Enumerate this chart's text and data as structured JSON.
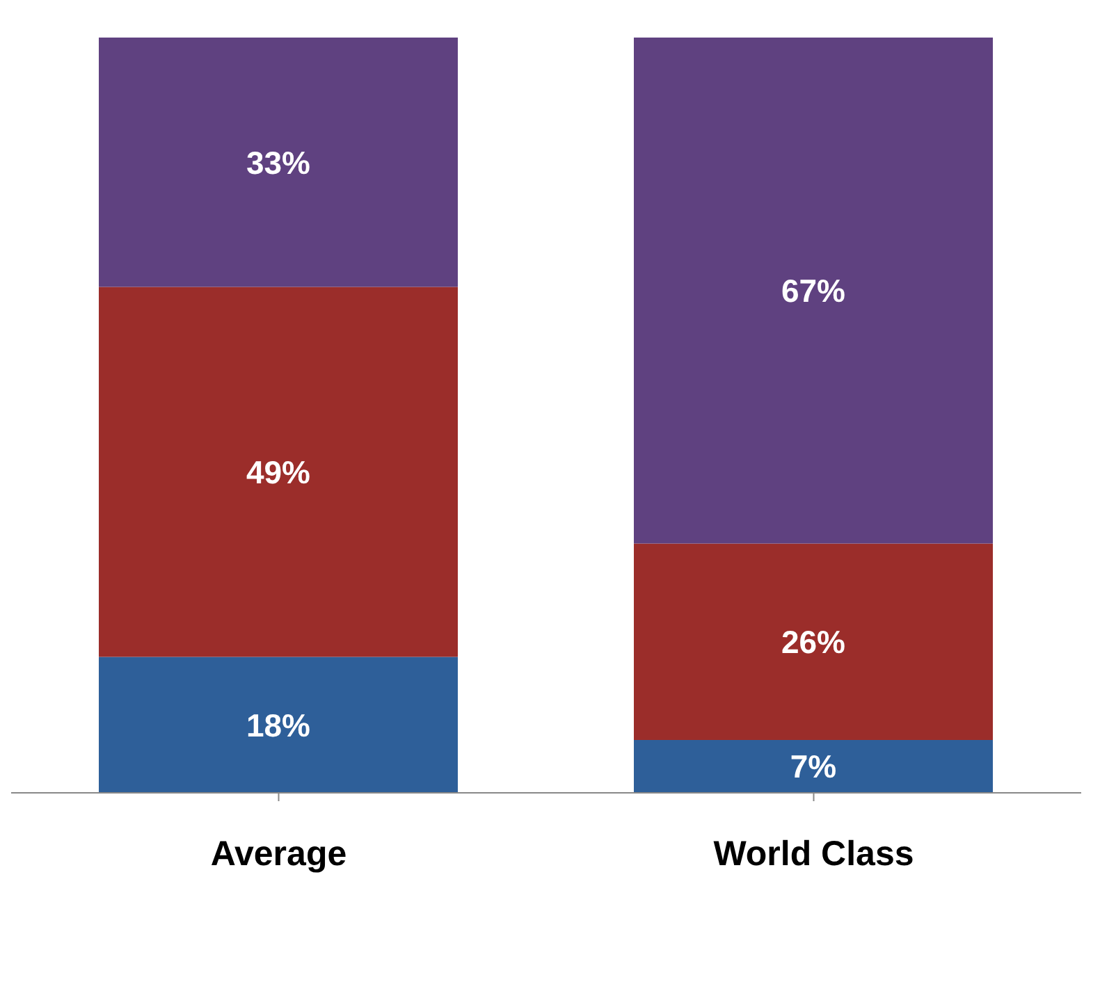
{
  "chart_data": {
    "type": "bar",
    "stacked": true,
    "categories": [
      "Average",
      "World Class"
    ],
    "series": [
      {
        "color": "#2e5f99",
        "values": [
          18,
          7
        ],
        "value_labels": [
          "18%",
          "7%"
        ]
      },
      {
        "color": "#9b2d2a",
        "values": [
          49,
          26
        ],
        "value_labels": [
          "49%",
          "26%"
        ]
      },
      {
        "color": "#5f4180",
        "values": [
          33,
          67
        ],
        "value_labels": [
          "33%",
          "67%"
        ]
      }
    ],
    "tick_labels": "x",
    "legend": false,
    "grid": false
  }
}
